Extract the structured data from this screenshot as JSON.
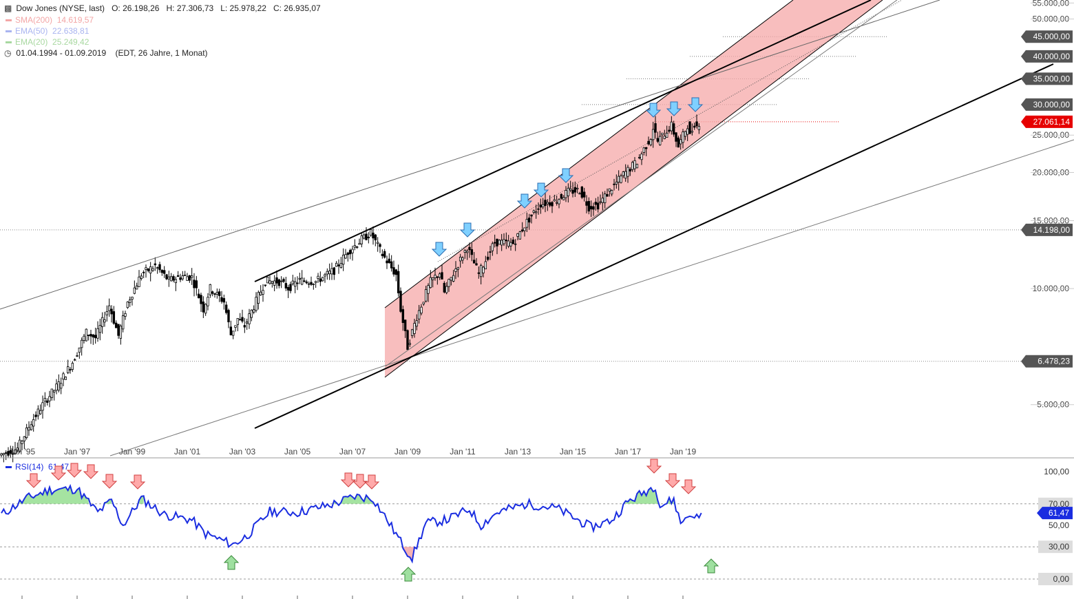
{
  "header": {
    "title": "Dow Jones (NYSE, last)",
    "open": "O: 26.198,26",
    "high": "H: 27.306,73",
    "low": "L: 25.978,22",
    "close": "C: 26.935,07",
    "period": "01.04.1994 - 01.09.2019",
    "period_note": "(EDT, 26 Jahre, 1 Monat)"
  },
  "indicators": [
    {
      "label": "SMA(200)",
      "value": "14.619,57",
      "color": "#f3a6a6"
    },
    {
      "label": "EMA(50)",
      "value": "22.638,81",
      "color": "#a9b4f0"
    },
    {
      "label": "EMA(20)",
      "value": "25.249,42",
      "color": "#a8d8a0"
    }
  ],
  "colors": {
    "candle": "#000000",
    "channel_fill": "#f5a8a8",
    "rsi_line": "#1a2de0",
    "rsi_overbought_fill": "#8fdc8a",
    "rsi_oversold_fill": "#f2a0a0",
    "sell_arrow": "#7fd0ff",
    "rsi_sell_arrow": "#ffaaaa",
    "rsi_buy_arrow": "#9fe0a0",
    "price_tag_current": "#e60000",
    "price_tag": "#555555"
  },
  "chart_data": [
    {
      "type": "candlestick",
      "title": "Dow Jones (NYSE, last)",
      "scale": "log",
      "x_tick_labels": [
        "Jan '95",
        "Jan '97",
        "Jan '99",
        "Jan '01",
        "Jan '03",
        "Jan '05",
        "Jan '07",
        "Jan '09",
        "Jan '11",
        "Jan '13",
        "Jan '15",
        "Jan '17",
        "Jan '19"
      ],
      "y_tick_labels": [
        "5.000,00",
        "10.000,00",
        "15.000,00",
        "20.000,00",
        "25.000,00",
        "50.000,00",
        "55.000,00"
      ],
      "ylim": [
        3700,
        56000
      ],
      "price_tags": [
        {
          "label": "45.000,00",
          "value": 45000
        },
        {
          "label": "40.000,00",
          "value": 40000
        },
        {
          "label": "35.000,00",
          "value": 35000
        },
        {
          "label": "30.000,00",
          "value": 30000
        },
        {
          "label": "27.061,14",
          "value": 27061.14,
          "current": true
        },
        {
          "label": "14.198,00",
          "value": 14198
        },
        {
          "label": "6.478,23",
          "value": 6478.23
        }
      ],
      "monthly_close_keypoints": [
        {
          "x": "1994-04",
          "y": 3700
        },
        {
          "x": "1994-12",
          "y": 3850
        },
        {
          "x": "1995-06",
          "y": 4500
        },
        {
          "x": "1995-12",
          "y": 5100
        },
        {
          "x": "1996-06",
          "y": 5650
        },
        {
          "x": "1996-12",
          "y": 6450
        },
        {
          "x": "1997-06",
          "y": 7700
        },
        {
          "x": "1997-10",
          "y": 7450
        },
        {
          "x": "1998-04",
          "y": 9050
        },
        {
          "x": "1998-08",
          "y": 7550
        },
        {
          "x": "1998-12",
          "y": 9200
        },
        {
          "x": "1999-06",
          "y": 10900
        },
        {
          "x": "1999-12",
          "y": 11450
        },
        {
          "x": "2000-06",
          "y": 10500
        },
        {
          "x": "2000-12",
          "y": 10780
        },
        {
          "x": "2001-04",
          "y": 10700
        },
        {
          "x": "2001-09",
          "y": 8850
        },
        {
          "x": "2001-12",
          "y": 10020
        },
        {
          "x": "2002-06",
          "y": 9250
        },
        {
          "x": "2002-09",
          "y": 7600
        },
        {
          "x": "2002-12",
          "y": 8350
        },
        {
          "x": "2003-03",
          "y": 7990
        },
        {
          "x": "2003-12",
          "y": 10450
        },
        {
          "x": "2004-06",
          "y": 10430
        },
        {
          "x": "2004-10",
          "y": 10030
        },
        {
          "x": "2005-03",
          "y": 10500
        },
        {
          "x": "2005-10",
          "y": 10440
        },
        {
          "x": "2006-06",
          "y": 11150
        },
        {
          "x": "2006-12",
          "y": 12460
        },
        {
          "x": "2007-06",
          "y": 13400
        },
        {
          "x": "2007-10",
          "y": 13930
        },
        {
          "x": "2008-03",
          "y": 12260
        },
        {
          "x": "2008-09",
          "y": 10850
        },
        {
          "x": "2008-11",
          "y": 8830
        },
        {
          "x": "2009-02",
          "y": 7060
        },
        {
          "x": "2009-06",
          "y": 8450
        },
        {
          "x": "2009-12",
          "y": 10430
        },
        {
          "x": "2010-04",
          "y": 11000
        },
        {
          "x": "2010-06",
          "y": 9770
        },
        {
          "x": "2010-12",
          "y": 11580
        },
        {
          "x": "2011-04",
          "y": 12810
        },
        {
          "x": "2011-09",
          "y": 10910
        },
        {
          "x": "2012-04",
          "y": 13210
        },
        {
          "x": "2012-12",
          "y": 13100
        },
        {
          "x": "2013-06",
          "y": 14900
        },
        {
          "x": "2013-12",
          "y": 16580
        },
        {
          "x": "2014-06",
          "y": 16830
        },
        {
          "x": "2014-12",
          "y": 17820
        },
        {
          "x": "2015-05",
          "y": 18010
        },
        {
          "x": "2015-09",
          "y": 16280
        },
        {
          "x": "2016-01",
          "y": 16470
        },
        {
          "x": "2016-06",
          "y": 17930
        },
        {
          "x": "2016-12",
          "y": 19760
        },
        {
          "x": "2017-06",
          "y": 21350
        },
        {
          "x": "2017-12",
          "y": 24720
        },
        {
          "x": "2018-01",
          "y": 26150
        },
        {
          "x": "2018-03",
          "y": 24100
        },
        {
          "x": "2018-09",
          "y": 26460
        },
        {
          "x": "2018-12",
          "y": 23330
        },
        {
          "x": "2019-04",
          "y": 26590
        },
        {
          "x": "2019-05",
          "y": 24820
        },
        {
          "x": "2019-07",
          "y": 26860
        },
        {
          "x": "2019-08",
          "y": 26400
        },
        {
          "x": "2019-09",
          "y": 26935
        }
      ]
    },
    {
      "type": "line",
      "title": "RSI(14)",
      "current_value": "61,47",
      "y_tick_labels": [
        "100,00",
        "70,00",
        "50,00",
        "30,00",
        "0,00"
      ],
      "current_tag": "61,47",
      "ylim": [
        0,
        100
      ],
      "thresholds": [
        70,
        30
      ],
      "keypoints": [
        {
          "x": "1994-04",
          "y": 60
        },
        {
          "x": "1995-03",
          "y": 75
        },
        {
          "x": "1996-01",
          "y": 83
        },
        {
          "x": "1997-01",
          "y": 84
        },
        {
          "x": "1997-10",
          "y": 62
        },
        {
          "x": "1998-04",
          "y": 73
        },
        {
          "x": "1998-09",
          "y": 50
        },
        {
          "x": "1999-05",
          "y": 75
        },
        {
          "x": "2000-03",
          "y": 60
        },
        {
          "x": "2001-03",
          "y": 55
        },
        {
          "x": "2001-09",
          "y": 42
        },
        {
          "x": "2002-09",
          "y": 32
        },
        {
          "x": "2003-03",
          "y": 40
        },
        {
          "x": "2004-01",
          "y": 63
        },
        {
          "x": "2005-01",
          "y": 62
        },
        {
          "x": "2006-05",
          "y": 70
        },
        {
          "x": "2007-02",
          "y": 77
        },
        {
          "x": "2007-10",
          "y": 75
        },
        {
          "x": "2008-05",
          "y": 52
        },
        {
          "x": "2008-12",
          "y": 28
        },
        {
          "x": "2009-03",
          "y": 20
        },
        {
          "x": "2009-09",
          "y": 52
        },
        {
          "x": "2010-06",
          "y": 55
        },
        {
          "x": "2011-04",
          "y": 65
        },
        {
          "x": "2011-09",
          "y": 50
        },
        {
          "x": "2012-04",
          "y": 62
        },
        {
          "x": "2013-05",
          "y": 70
        },
        {
          "x": "2014-06",
          "y": 66
        },
        {
          "x": "2015-09",
          "y": 48
        },
        {
          "x": "2016-06",
          "y": 55
        },
        {
          "x": "2017-01",
          "y": 72
        },
        {
          "x": "2018-01",
          "y": 87
        },
        {
          "x": "2018-03",
          "y": 68
        },
        {
          "x": "2018-09",
          "y": 74
        },
        {
          "x": "2018-12",
          "y": 52
        },
        {
          "x": "2019-04",
          "y": 62
        },
        {
          "x": "2019-05",
          "y": 55
        },
        {
          "x": "2019-09",
          "y": 61.47
        }
      ]
    }
  ]
}
